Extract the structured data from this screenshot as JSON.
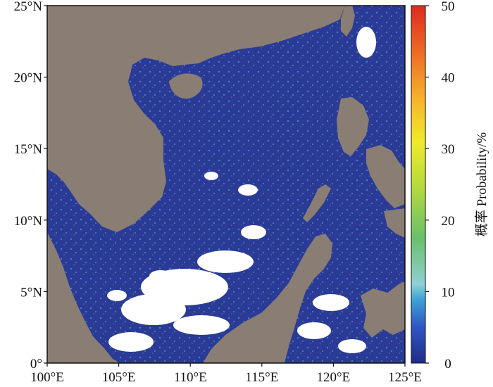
{
  "map": {
    "x_axis": {
      "range": [
        100,
        125
      ],
      "ticks": [
        100,
        105,
        110,
        115,
        120,
        125
      ],
      "tick_labels": [
        "100°E",
        "105°E",
        "110°E",
        "115°E",
        "120°E",
        "125°E"
      ]
    },
    "y_axis": {
      "range": [
        0,
        25
      ],
      "ticks": [
        0,
        5,
        10,
        15,
        20,
        25
      ],
      "tick_labels": [
        "0°",
        "5°N",
        "10°N",
        "15°N",
        "20°N",
        "25°N"
      ]
    },
    "land_color": "#8a7d73",
    "no_data_color": "#ffffff",
    "ocean_base_color": "#2b3a96"
  },
  "colorbar": {
    "title": "概率 Probability/%",
    "range": [
      0,
      50
    ],
    "ticks": [
      0,
      10,
      20,
      30,
      40,
      50
    ],
    "tick_labels": [
      "0",
      "10",
      "20",
      "30",
      "40",
      "50"
    ],
    "colors": [
      "#1f2c8a",
      "#2f55c4",
      "#3fa3d8",
      "#8fd0d4",
      "#6ac06a",
      "#b8dc3a",
      "#f0ea2a",
      "#f7b22a",
      "#ee6a24",
      "#de2a20"
    ]
  }
}
